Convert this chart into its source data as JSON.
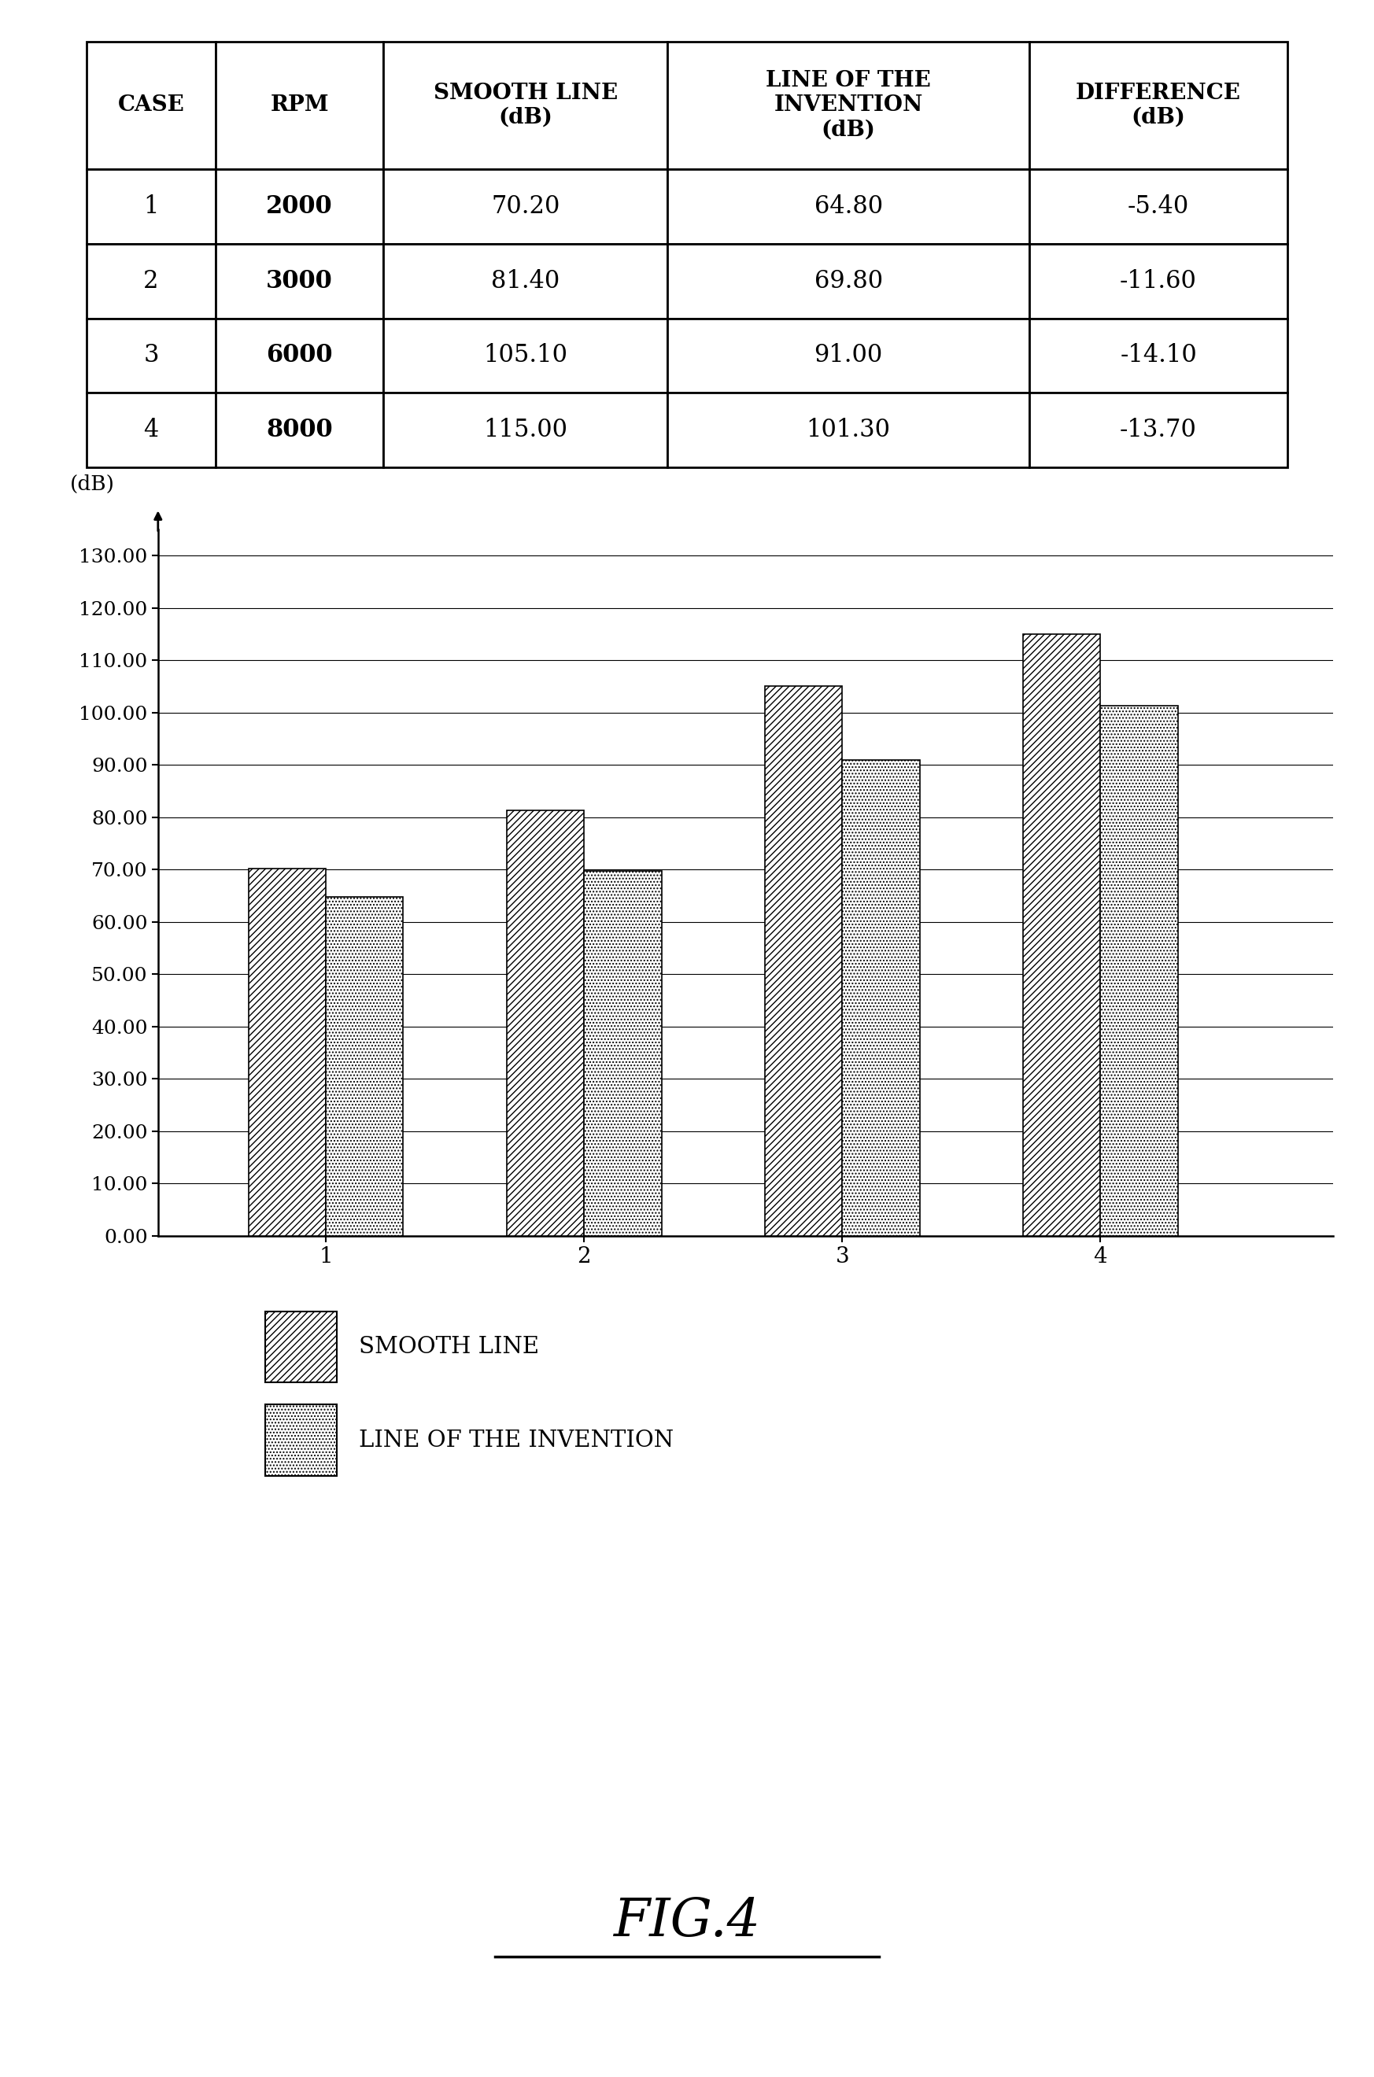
{
  "table": {
    "headers": [
      "CASE",
      "RPM",
      "SMOOTH LINE\n(dB)",
      "LINE OF THE\nINVENTION\n(dB)",
      "DIFFERENCE\n(dB)"
    ],
    "rows": [
      [
        "1",
        "2000",
        "70.20",
        "64.80",
        "-5.40"
      ],
      [
        "2",
        "3000",
        "81.40",
        "69.80",
        "-11.60"
      ],
      [
        "3",
        "6000",
        "105.10",
        "91.00",
        "-14.10"
      ],
      [
        "4",
        "8000",
        "115.00",
        "101.30",
        "-13.70"
      ]
    ]
  },
  "chart": {
    "cases": [
      1,
      2,
      3,
      4
    ],
    "smooth_line": [
      70.2,
      81.4,
      105.1,
      115.0
    ],
    "invention_line": [
      64.8,
      69.8,
      91.0,
      101.3
    ],
    "ylabel": "(dB)",
    "yticks": [
      0.0,
      10.0,
      20.0,
      30.0,
      40.0,
      50.0,
      60.0,
      70.0,
      80.0,
      90.0,
      100.0,
      110.0,
      120.0,
      130.0
    ],
    "ylim": [
      0,
      135
    ],
    "xlim": [
      0.35,
      4.9
    ]
  },
  "legend": {
    "smooth_label": "SMOOTH LINE",
    "invention_label": "LINE OF THE INVENTION"
  },
  "fig_label": "FIG.4"
}
